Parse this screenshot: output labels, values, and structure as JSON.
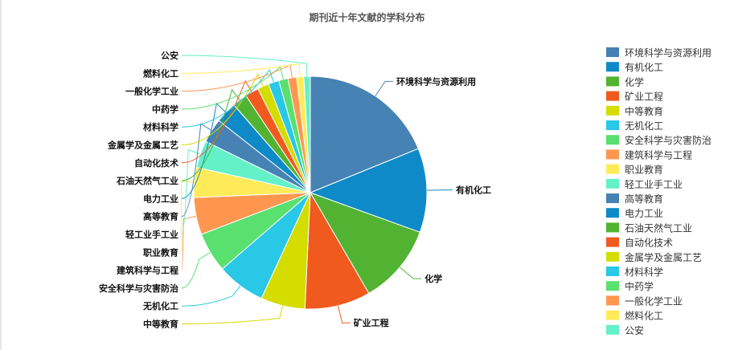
{
  "chart_data": {
    "type": "pie",
    "title": "期刊近十年文献的学科分布",
    "legend_position": "right",
    "slices": [
      {
        "name": "环境科学与资源利用",
        "value": 19.0,
        "color": "#4682b4"
      },
      {
        "name": "有机化工",
        "value": 11.8,
        "color": "#0e8ac8"
      },
      {
        "name": "化学",
        "value": 11.2,
        "color": "#52b332"
      },
      {
        "name": "矿业工程",
        "value": 9.2,
        "color": "#f05a1e"
      },
      {
        "name": "中等教育",
        "value": 6.2,
        "color": "#d4dc00"
      },
      {
        "name": "无机化工",
        "value": 6.8,
        "color": "#28c8e6"
      },
      {
        "name": "安全科学与灾害防治",
        "value": 5.6,
        "color": "#5ae06e"
      },
      {
        "name": "建筑科学与工程",
        "value": 5.2,
        "color": "#ff9650"
      },
      {
        "name": "职业教育",
        "value": 4.2,
        "color": "#ffeb5a"
      },
      {
        "name": "轻工业手工业",
        "value": 3.8,
        "color": "#64f0c8"
      },
      {
        "name": "高等教育",
        "value": 3.4,
        "color": "#4682b4"
      },
      {
        "name": "电力工业",
        "value": 3.0,
        "color": "#0e8ac8"
      },
      {
        "name": "石油天然气工业",
        "value": 2.1,
        "color": "#52b332"
      },
      {
        "name": "自动化技术",
        "value": 1.9,
        "color": "#f05a1e"
      },
      {
        "name": "金属学及金属工艺",
        "value": 1.6,
        "color": "#d4dc00"
      },
      {
        "name": "材料科学",
        "value": 1.5,
        "color": "#28c8e6"
      },
      {
        "name": "中药学",
        "value": 1.3,
        "color": "#5ae06e"
      },
      {
        "name": "一般化学工业",
        "value": 1.2,
        "color": "#ff9650"
      },
      {
        "name": "燃料化工",
        "value": 1.0,
        "color": "#ffeb5a"
      },
      {
        "name": "公安",
        "value": 0.9,
        "color": "#64f0c8"
      }
    ]
  }
}
